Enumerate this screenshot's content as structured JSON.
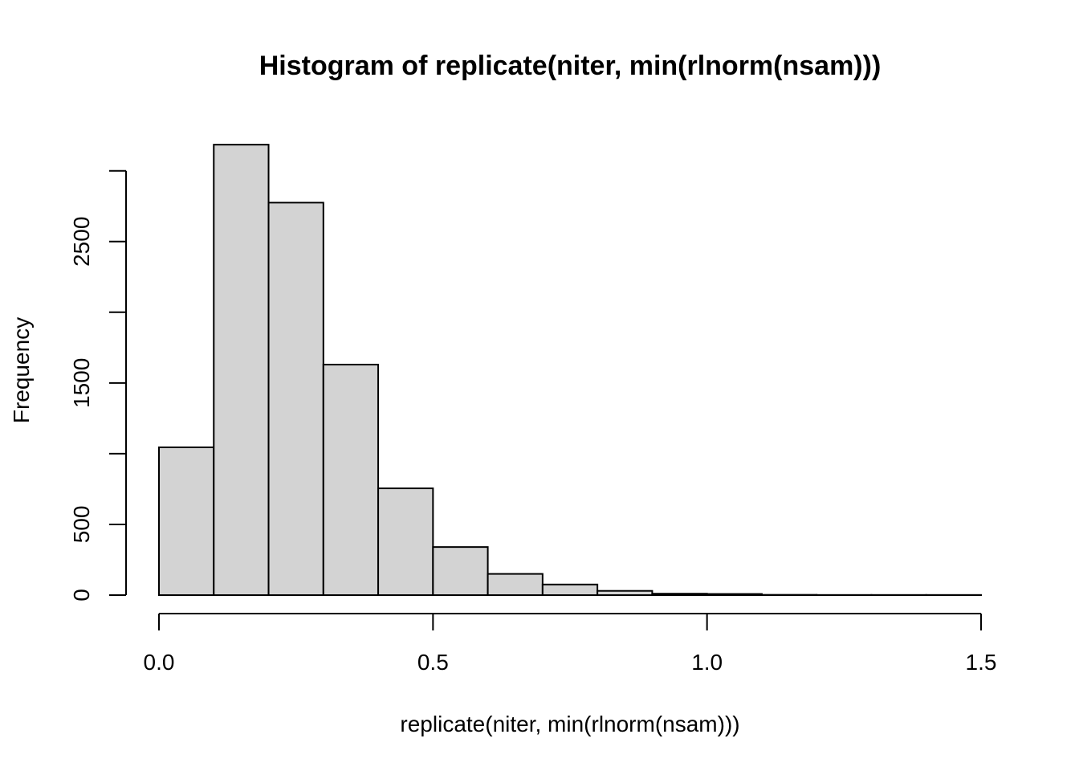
{
  "chart_data": {
    "type": "bar",
    "title": "Histogram of replicate(niter, min(rlnorm(nsam)))",
    "xlabel": "replicate(niter, min(rlnorm(nsam)))",
    "ylabel": "Frequency",
    "bins": [
      {
        "x0": 0.0,
        "x1": 0.1,
        "count": 1045
      },
      {
        "x0": 0.1,
        "x1": 0.2,
        "count": 3185
      },
      {
        "x0": 0.2,
        "x1": 0.3,
        "count": 2775
      },
      {
        "x0": 0.3,
        "x1": 0.4,
        "count": 1630
      },
      {
        "x0": 0.4,
        "x1": 0.5,
        "count": 755
      },
      {
        "x0": 0.5,
        "x1": 0.6,
        "count": 340
      },
      {
        "x0": 0.6,
        "x1": 0.7,
        "count": 150
      },
      {
        "x0": 0.7,
        "x1": 0.8,
        "count": 75
      },
      {
        "x0": 0.8,
        "x1": 0.9,
        "count": 30
      },
      {
        "x0": 0.9,
        "x1": 1.0,
        "count": 10
      },
      {
        "x0": 1.0,
        "x1": 1.1,
        "count": 8
      },
      {
        "x0": 1.1,
        "x1": 1.2,
        "count": 2
      },
      {
        "x0": 1.2,
        "x1": 1.3,
        "count": 1
      },
      {
        "x0": 1.3,
        "x1": 1.4,
        "count": 1
      },
      {
        "x0": 1.4,
        "x1": 1.5,
        "count": 1
      }
    ],
    "xlim": [
      0.0,
      1.5
    ],
    "ylim": [
      0,
      3000
    ],
    "x_ticks": [
      0.0,
      0.5,
      1.0,
      1.5
    ],
    "x_tick_labels": [
      "0.0",
      "0.5",
      "1.0",
      "1.5"
    ],
    "y_ticks": [
      0,
      500,
      1000,
      1500,
      2000,
      2500,
      3000
    ],
    "y_tick_labels": [
      "0",
      "500",
      "",
      "1500",
      "",
      "2500",
      ""
    ],
    "bar_fill": "#d3d3d3",
    "bar_stroke": "#000000",
    "grid": false,
    "legend": "none"
  }
}
